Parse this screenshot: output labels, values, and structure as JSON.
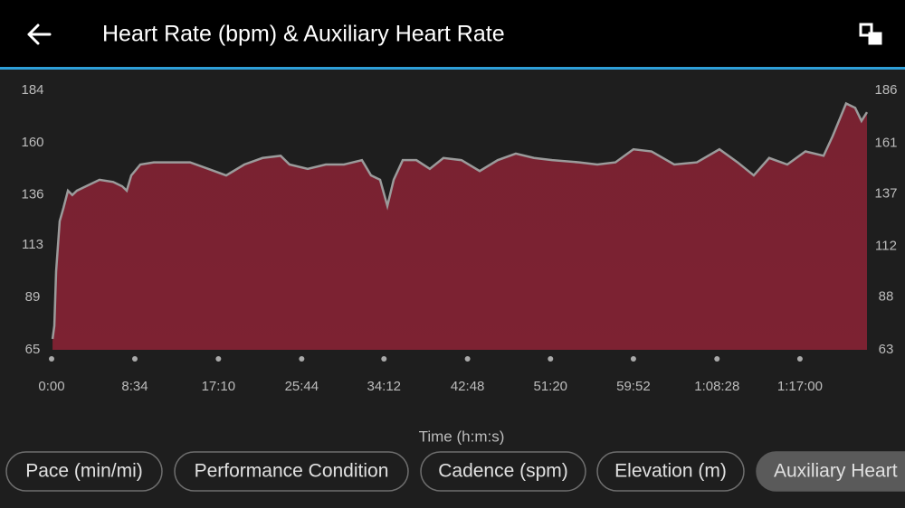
{
  "header": {
    "title": "Heart Rate (bpm) & Auxiliary Heart Rate"
  },
  "chart_data": {
    "type": "area",
    "xlabel": "Time (h:m:s)",
    "x": [
      6,
      17,
      28,
      50,
      73,
      101,
      128,
      156,
      212,
      296,
      380,
      436,
      464,
      492,
      548,
      631,
      743,
      855,
      967,
      1078,
      1190,
      1302,
      1414,
      1469,
      1581,
      1693,
      1805,
      1916,
      1972,
      2028,
      2073,
      2112,
      2168,
      2252,
      2335,
      2419,
      2531,
      2643,
      2754,
      2866,
      2978,
      3090,
      3257,
      3369,
      3481,
      3592,
      3704,
      3844,
      3984,
      4123,
      4235,
      4335,
      4430,
      4542,
      4654,
      4766,
      4822,
      4905,
      4961,
      5000,
      5034
    ],
    "series": [
      {
        "color": "#7d2232",
        "values": [
          70,
          76,
          101,
          124,
          130,
          138,
          136,
          138,
          140,
          143,
          142,
          140,
          138,
          145,
          150,
          151,
          151,
          151,
          148,
          145,
          150,
          153,
          154,
          150,
          148,
          150,
          150,
          152,
          145,
          143,
          131,
          143,
          152,
          152,
          148,
          153,
          152,
          147,
          152,
          155,
          153,
          152,
          151,
          150,
          151,
          157,
          156,
          150,
          151,
          157,
          151,
          145,
          153,
          150,
          156,
          154,
          163,
          178,
          176,
          170,
          174
        ]
      }
    ],
    "xlim": [
      0,
      5034
    ],
    "xticks": [
      {
        "value": 0,
        "label": "0:00"
      },
      {
        "value": 514,
        "label": "8:34"
      },
      {
        "value": 1030,
        "label": "17:10"
      },
      {
        "value": 1544,
        "label": "25:44"
      },
      {
        "value": 2052,
        "label": "34:12"
      },
      {
        "value": 2568,
        "label": "42:48"
      },
      {
        "value": 3080,
        "label": "51:20"
      },
      {
        "value": 3592,
        "label": "59:52"
      },
      {
        "value": 4108,
        "label": "1:08:28"
      },
      {
        "value": 4620,
        "label": "1:17:00"
      }
    ],
    "ylim": [
      65,
      184
    ],
    "yticks": [
      65,
      89,
      113,
      136,
      160,
      184
    ],
    "y2lim": [
      63,
      186
    ],
    "y2ticks": [
      63,
      88,
      112,
      137,
      161,
      186
    ]
  },
  "tabs": [
    "Pace (min/mi)",
    "Performance Condition",
    "Cadence (spm)",
    "Elevation (m)",
    "Auxiliary Heart"
  ]
}
